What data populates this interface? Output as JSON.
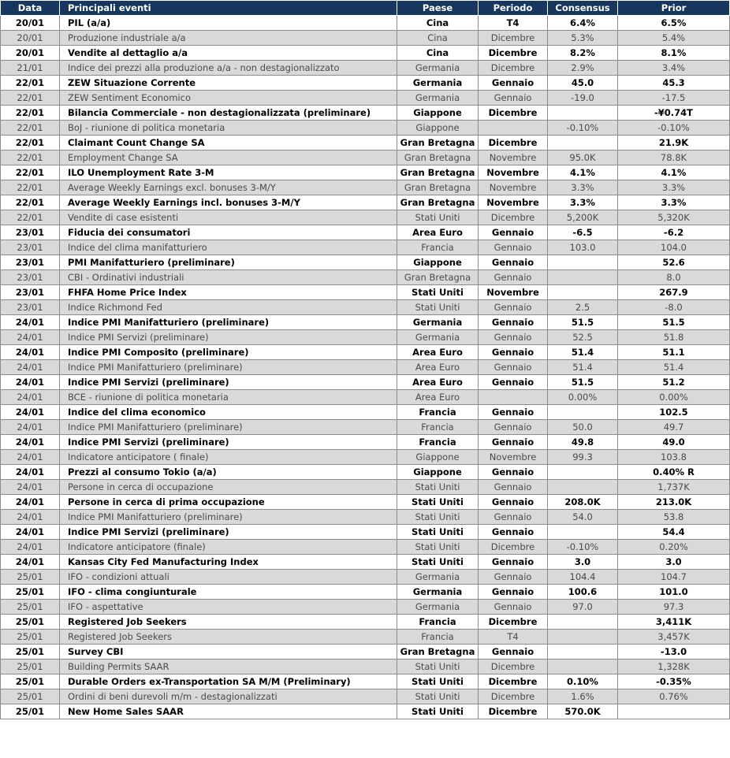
{
  "table": {
    "header": [
      "Data",
      "Principali eventi",
      "Paese",
      "Periodo",
      "Consensus",
      "Prior"
    ],
    "rows": [
      [
        "20/01",
        "PIL (a/a)",
        "Cina",
        "T4",
        "6.4%",
        "6.5%"
      ],
      [
        "20/01",
        "Produzione industriale a/a",
        "Cina",
        "Dicembre",
        "5.3%",
        "5.4%"
      ],
      [
        "20/01",
        "Vendite al dettaglio a/a",
        "Cina",
        "Dicembre",
        "8.2%",
        "8.1%"
      ],
      [
        "21/01",
        "Indice dei prezzi alla produzione a/a -  non destagionalizzato",
        "Germania",
        "Dicembre",
        "2.9%",
        "3.4%"
      ],
      [
        "22/01",
        "ZEW Situazione Corrente",
        "Germania",
        "Gennaio",
        "45.0",
        "45.3"
      ],
      [
        "22/01",
        "ZEW Sentiment Economico",
        "Germania",
        "Gennaio",
        "-19.0",
        "-17.5"
      ],
      [
        "22/01",
        "Bilancia Commerciale -  non destagionalizzata (preliminare)",
        "Giappone",
        "Dicembre",
        null,
        "-¥0.74T"
      ],
      [
        "22/01",
        "BoJ - riunione di politica monetaria",
        "Giappone",
        null,
        "-0.10%",
        "-0.10%"
      ],
      [
        "22/01",
        "Claimant Count Change SA",
        "Gran Bretagna",
        "Dicembre",
        null,
        "21.9K"
      ],
      [
        "22/01",
        "Employment Change SA",
        "Gran Bretagna",
        "Novembre",
        "95.0K",
        "78.8K"
      ],
      [
        "22/01",
        "ILO Unemployment Rate 3-M",
        "Gran Bretagna",
        "Novembre",
        "4.1%",
        "4.1%"
      ],
      [
        "22/01",
        "Average Weekly Earnings excl. bonuses 3-M/Y",
        "Gran Bretagna",
        "Novembre",
        "3.3%",
        "3.3%"
      ],
      [
        "22/01",
        "Average Weekly Earnings incl. bonuses 3-M/Y",
        "Gran Bretagna",
        "Novembre",
        "3.3%",
        "3.3%"
      ],
      [
        "22/01",
        "Vendite di case esistenti",
        "Stati Uniti",
        "Dicembre",
        "5,200K",
        "5,320K"
      ],
      [
        "23/01",
        "Fiducia dei consumatori",
        "Area Euro",
        "Gennaio",
        "-6.5",
        "-6.2"
      ],
      [
        "23/01",
        "Indice del clima manifatturiero",
        "Francia",
        "Gennaio",
        "103.0",
        "104.0"
      ],
      [
        "23/01",
        "PMI Manifatturiero (preliminare)",
        "Giappone",
        "Gennaio",
        null,
        "52.6"
      ],
      [
        "23/01",
        "CBI - Ordinativi industriali",
        "Gran Bretagna",
        "Gennaio",
        null,
        "8.0"
      ],
      [
        "23/01",
        "FHFA Home Price Index",
        "Stati Uniti",
        "Novembre",
        null,
        "267.9"
      ],
      [
        "23/01",
        "Indice Richmond Fed",
        "Stati Uniti",
        "Gennaio",
        "2.5",
        "-8.0"
      ],
      [
        "24/01",
        "Indice PMI Manifatturiero (preliminare)",
        "Germania",
        "Gennaio",
        "51.5",
        "51.5"
      ],
      [
        "24/01",
        "Indice PMI Servizi (preliminare)",
        "Germania",
        "Gennaio",
        "52.5",
        "51.8"
      ],
      [
        "24/01",
        "Indice PMI Composito (preliminare)",
        "Area Euro",
        "Gennaio",
        "51.4",
        "51.1"
      ],
      [
        "24/01",
        "Indice PMI Manifatturiero (preliminare)",
        "Area Euro",
        "Gennaio",
        "51.4",
        "51.4"
      ],
      [
        "24/01",
        "Indice PMI Servizi (preliminare)",
        "Area Euro",
        "Gennaio",
        "51.5",
        "51.2"
      ],
      [
        "24/01",
        "BCE - riunione di politica monetaria",
        "Area Euro",
        null,
        "0.00%",
        "0.00%"
      ],
      [
        "24/01",
        "Indice del clima economico",
        "Francia",
        "Gennaio",
        null,
        "102.5"
      ],
      [
        "24/01",
        "Indice PMI Manifatturiero (preliminare)",
        "Francia",
        "Gennaio",
        "50.0",
        "49.7"
      ],
      [
        "24/01",
        "Indice PMI Servizi (preliminare)",
        "Francia",
        "Gennaio",
        "49.8",
        "49.0"
      ],
      [
        "24/01",
        "Indicatore anticipatore ( finale)",
        "Giappone",
        "Novembre",
        "99.3",
        "103.8"
      ],
      [
        "24/01",
        "Prezzi al consumo Tokio (a/a)",
        "Giappone",
        "Gennaio",
        null,
        "0.40% R"
      ],
      [
        "24/01",
        "Persone in cerca di occupazione",
        "Stati Uniti",
        "Gennaio",
        null,
        "1,737K"
      ],
      [
        "24/01",
        "Persone in cerca di prima occupazione",
        "Stati Uniti",
        "Gennaio",
        "208.0K",
        "213.0K"
      ],
      [
        "24/01",
        "Indice PMI Manifatturiero (preliminare)",
        "Stati Uniti",
        "Gennaio",
        "54.0",
        "53.8"
      ],
      [
        "24/01",
        "Indice PMI Servizi (preliminare)",
        "Stati Uniti",
        "Gennaio",
        null,
        "54.4"
      ],
      [
        "24/01",
        "Indicatore anticipatore (finale)",
        "Stati Uniti",
        "Dicembre",
        "-0.10%",
        "0.20%"
      ],
      [
        "24/01",
        "Kansas City Fed Manufacturing Index",
        "Stati Uniti",
        "Gennaio",
        "3.0",
        "3.0"
      ],
      [
        "25/01",
        "IFO - condizioni attuali",
        "Germania",
        "Gennaio",
        "104.4",
        "104.7"
      ],
      [
        "25/01",
        "IFO - clima congiunturale",
        "Germania",
        "Gennaio",
        "100.6",
        "101.0"
      ],
      [
        "25/01",
        "IFO - aspettative",
        "Germania",
        "Gennaio",
        "97.0",
        "97.3"
      ],
      [
        "25/01",
        "Registered Job Seekers",
        "Francia",
        "Dicembre",
        null,
        "3,411K"
      ],
      [
        "25/01",
        "Registered Job Seekers",
        "Francia",
        "T4",
        null,
        "3,457K"
      ],
      [
        "25/01",
        "Survey CBI",
        "Gran Bretagna",
        "Gennaio",
        null,
        "-13.0"
      ],
      [
        "25/01",
        "Building Permits SAAR",
        "Stati Uniti",
        "Dicembre",
        null,
        "1,328K"
      ],
      [
        "25/01",
        "Durable Orders ex-Transportation SA M/M (Preliminary)",
        "Stati Uniti",
        "Dicembre",
        "0.10%",
        "-0.35%"
      ],
      [
        "25/01",
        "Ordini di beni durevoli m/m - destagionalizzati",
        "Stati Uniti",
        "Dicembre",
        "1.6%",
        "0.76%"
      ],
      [
        "25/01",
        "New Home Sales SAAR",
        "Stati Uniti",
        "Dicembre",
        "570.0K",
        null
      ]
    ]
  }
}
